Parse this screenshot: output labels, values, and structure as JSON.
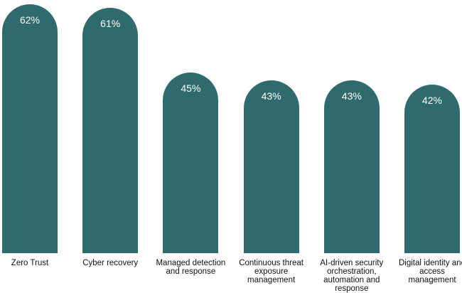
{
  "chart_data": {
    "type": "bar",
    "categories": [
      "Zero Trust",
      "Cyber recovery",
      "Managed detection and response",
      "Continuous threat exposure management",
      "AI-driven security orchestration, automation and response",
      "Digital identity and access management"
    ],
    "values": [
      62,
      61,
      45,
      43,
      43,
      42
    ],
    "value_labels": [
      "62%",
      "61%",
      "45%",
      "43%",
      "43%",
      "42%"
    ],
    "color": "#2f6b6c"
  }
}
